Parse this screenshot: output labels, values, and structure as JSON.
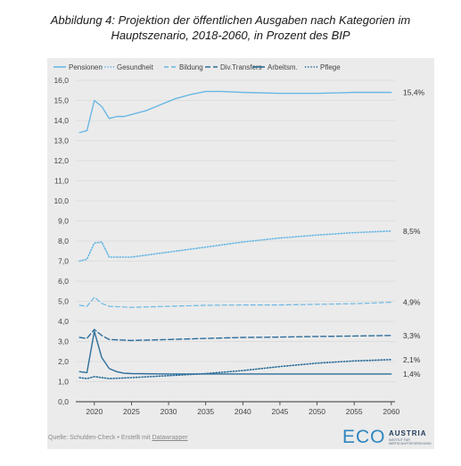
{
  "title_line1": "Abbildung 4: Projektion der öffentlichen Ausgaben nach Kategorien im",
  "title_line2": "Hauptszenario, 2018-2060, in Prozent des BIP",
  "source_prefix": "Quelle: Schulden-Check • Erstellt mit ",
  "source_link": "Datawrapper",
  "logo": {
    "eco": "ECO",
    "austria": "AUSTRIA",
    "sub1": "Institut für",
    "sub2": "Wirtschaftsforschung"
  },
  "colors": {
    "line": "#6ab8e4",
    "dark": "#2c6e9a",
    "grid": "#d2d2d2",
    "axis": "#333333",
    "text": "#444444"
  },
  "chart_data": {
    "type": "line",
    "title": "Abbildung 4: Projektion der öffentlichen Ausgaben nach Kategorien im Hauptszenario, 2018-2060, in Prozent des BIP",
    "xlabel": "",
    "ylabel": "",
    "xlim": [
      2017.5,
      2060.5
    ],
    "ylim": [
      0,
      16
    ],
    "xticks": [
      2020,
      2025,
      2030,
      2035,
      2040,
      2045,
      2050,
      2055,
      2060
    ],
    "yticks": [
      0,
      1,
      2,
      3,
      4,
      5,
      6,
      7,
      8,
      9,
      10,
      11,
      12,
      13,
      14,
      15,
      16
    ],
    "ytick_labels": [
      "0,0",
      "1,0",
      "2,0",
      "3,0",
      "4,0",
      "5,0",
      "6,0",
      "7,0",
      "8,0",
      "9,0",
      "10,0",
      "11,0",
      "12,0",
      "13,0",
      "14,0",
      "15,0",
      "16,0"
    ],
    "grid": true,
    "legend_position": "top",
    "series": [
      {
        "name": "Pensionen",
        "style": "solid-light",
        "end_label": "15,4%",
        "points": [
          [
            2018,
            13.4
          ],
          [
            2019,
            13.5
          ],
          [
            2020,
            15.0
          ],
          [
            2021,
            14.7
          ],
          [
            2022,
            14.1
          ],
          [
            2023,
            14.2
          ],
          [
            2024,
            14.2
          ],
          [
            2025,
            14.3
          ],
          [
            2027,
            14.5
          ],
          [
            2029,
            14.8
          ],
          [
            2031,
            15.1
          ],
          [
            2033,
            15.3
          ],
          [
            2035,
            15.45
          ],
          [
            2037,
            15.45
          ],
          [
            2040,
            15.4
          ],
          [
            2045,
            15.35
          ],
          [
            2050,
            15.35
          ],
          [
            2055,
            15.4
          ],
          [
            2060,
            15.4
          ]
        ]
      },
      {
        "name": "Gesundheit",
        "style": "dotted-light",
        "end_label": "8,5%",
        "points": [
          [
            2018,
            7.0
          ],
          [
            2019,
            7.1
          ],
          [
            2020,
            7.9
          ],
          [
            2021,
            7.95
          ],
          [
            2022,
            7.2
          ],
          [
            2023,
            7.2
          ],
          [
            2025,
            7.2
          ],
          [
            2030,
            7.45
          ],
          [
            2035,
            7.7
          ],
          [
            2040,
            7.95
          ],
          [
            2045,
            8.15
          ],
          [
            2050,
            8.3
          ],
          [
            2055,
            8.42
          ],
          [
            2060,
            8.5
          ]
        ]
      },
      {
        "name": "Bildung",
        "style": "dashed-light",
        "end_label": "4,9%",
        "points": [
          [
            2018,
            4.8
          ],
          [
            2019,
            4.75
          ],
          [
            2020,
            5.2
          ],
          [
            2021,
            4.9
          ],
          [
            2022,
            4.75
          ],
          [
            2025,
            4.7
          ],
          [
            2030,
            4.75
          ],
          [
            2035,
            4.8
          ],
          [
            2040,
            4.82
          ],
          [
            2045,
            4.82
          ],
          [
            2050,
            4.85
          ],
          [
            2055,
            4.88
          ],
          [
            2060,
            4.95
          ]
        ]
      },
      {
        "name": "Div.Transfers",
        "style": "dashed-dark",
        "end_label": "3,3%",
        "points": [
          [
            2018,
            3.2
          ],
          [
            2019,
            3.15
          ],
          [
            2020,
            3.6
          ],
          [
            2021,
            3.3
          ],
          [
            2022,
            3.1
          ],
          [
            2025,
            3.05
          ],
          [
            2030,
            3.1
          ],
          [
            2035,
            3.15
          ],
          [
            2040,
            3.2
          ],
          [
            2045,
            3.22
          ],
          [
            2050,
            3.25
          ],
          [
            2055,
            3.27
          ],
          [
            2060,
            3.3
          ]
        ]
      },
      {
        "name": "Arbeitsm.",
        "style": "solid-dark",
        "end_label": "1,4%",
        "points": [
          [
            2018,
            1.5
          ],
          [
            2019,
            1.45
          ],
          [
            2020,
            3.5
          ],
          [
            2021,
            2.2
          ],
          [
            2022,
            1.65
          ],
          [
            2023,
            1.5
          ],
          [
            2024,
            1.42
          ],
          [
            2025,
            1.4
          ],
          [
            2030,
            1.38
          ],
          [
            2035,
            1.38
          ],
          [
            2040,
            1.38
          ],
          [
            2045,
            1.38
          ],
          [
            2050,
            1.38
          ],
          [
            2055,
            1.38
          ],
          [
            2060,
            1.38
          ]
        ]
      },
      {
        "name": "Pflege",
        "style": "dotted-dark",
        "end_label": "2,1%",
        "points": [
          [
            2018,
            1.2
          ],
          [
            2019,
            1.15
          ],
          [
            2020,
            1.25
          ],
          [
            2021,
            1.2
          ],
          [
            2022,
            1.15
          ],
          [
            2025,
            1.2
          ],
          [
            2030,
            1.3
          ],
          [
            2035,
            1.4
          ],
          [
            2040,
            1.55
          ],
          [
            2045,
            1.75
          ],
          [
            2050,
            1.92
          ],
          [
            2055,
            2.03
          ],
          [
            2060,
            2.1
          ]
        ]
      }
    ]
  }
}
